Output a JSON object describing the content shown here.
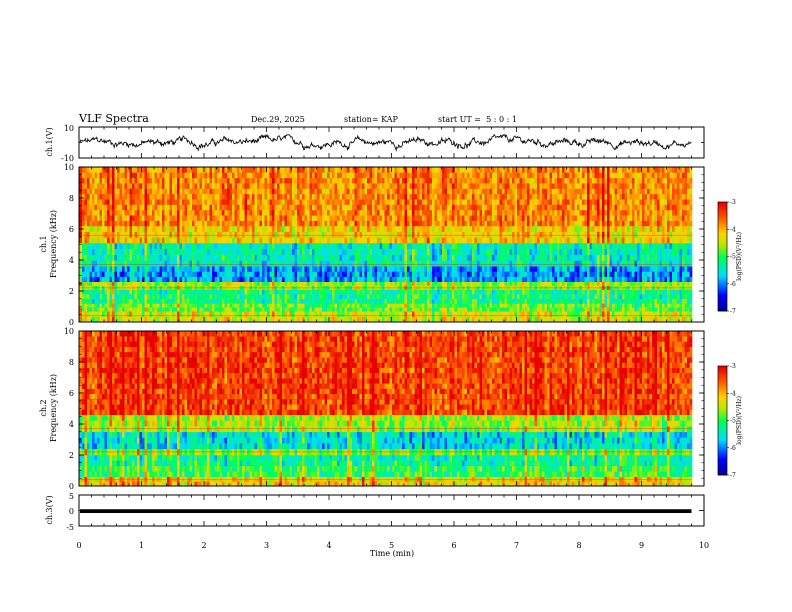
{
  "header": {
    "title": "VLF Spectra",
    "date": "Dec.29, 2025",
    "station": "station= KAP",
    "start": "start UT =  5 : 0 : 1"
  },
  "chart_data": [
    {
      "type": "line",
      "name": "ch1-waveform",
      "ylabel": "ch.1(V)",
      "ylim": [
        -10,
        10
      ],
      "yticks": [
        "10",
        "-10"
      ],
      "x_range_min": [
        0,
        9.8
      ],
      "amplitude_range_v": [
        -5,
        5
      ],
      "color": "#000000"
    },
    {
      "type": "heatmap",
      "name": "ch1-spectrogram",
      "ylabel": "ch.1\nFrequency (kHz)",
      "ylabel_line1": "ch.1",
      "ylabel_line2": "Frequency (kHz)",
      "ylim": [
        0,
        10
      ],
      "yticks": [
        "0",
        "2",
        "4",
        "6",
        "8",
        "10"
      ],
      "x_range_min": [
        0,
        9.8
      ],
      "bands_khz": [
        {
          "from": 0,
          "to": 0.7,
          "log_psd": -4.4
        },
        {
          "from": 0.7,
          "to": 1.2,
          "log_psd": -4.8
        },
        {
          "from": 1.2,
          "to": 2.1,
          "log_psd": -5.2
        },
        {
          "from": 2.1,
          "to": 2.6,
          "log_psd": -4.6
        },
        {
          "from": 2.6,
          "to": 3.6,
          "log_psd": -5.9
        },
        {
          "from": 3.6,
          "to": 5.1,
          "log_psd": -5.4
        },
        {
          "from": 5.1,
          "to": 6.2,
          "log_psd": -4.2
        },
        {
          "from": 6.2,
          "to": 10,
          "log_psd": -3.8
        }
      ],
      "colorbar": {
        "label": "log(PSD)(V²/Hz)",
        "range": [
          -7,
          -3
        ],
        "ticks": [
          "-3",
          "-4",
          "-5",
          "-6",
          "-7"
        ]
      }
    },
    {
      "type": "heatmap",
      "name": "ch2-spectrogram",
      "ylabel": "ch.2\nFrequency (kHz)",
      "ylabel_line1": "ch.2",
      "ylabel_line2": "Frequency (kHz)",
      "ylim": [
        0,
        10
      ],
      "yticks": [
        "0",
        "2",
        "4",
        "6",
        "8",
        "10"
      ],
      "x_range_min": [
        0,
        9.8
      ],
      "bands_khz": [
        {
          "from": 0,
          "to": 0.6,
          "log_psd": -4.2
        },
        {
          "from": 0.6,
          "to": 1.3,
          "log_psd": -5.0
        },
        {
          "from": 1.3,
          "to": 2.0,
          "log_psd": -5.3
        },
        {
          "from": 2.0,
          "to": 2.4,
          "log_psd": -4.7
        },
        {
          "from": 2.4,
          "to": 3.5,
          "log_psd": -5.6
        },
        {
          "from": 3.5,
          "to": 4.6,
          "log_psd": -4.6
        },
        {
          "from": 4.6,
          "to": 10,
          "log_psd": -3.4
        }
      ],
      "colorbar": {
        "label": "log(PSD)(V²/Hz)",
        "range": [
          -7,
          -3
        ],
        "ticks": [
          "-3",
          "-4",
          "-5",
          "-6",
          "-7"
        ]
      }
    },
    {
      "type": "line",
      "name": "ch3-waveform",
      "ylabel": "ch.3(V)",
      "ylim": [
        -5,
        5
      ],
      "yticks": [
        "5",
        "0",
        "-5"
      ],
      "x_range_min": [
        0,
        9.8
      ],
      "band_range_v": [
        -0.8,
        0.4
      ],
      "color": "#000000"
    }
  ],
  "x_axis": {
    "label": "Time (min)",
    "range": [
      0,
      10
    ],
    "ticks": [
      "0",
      "1",
      "2",
      "3",
      "4",
      "5",
      "6",
      "7",
      "8",
      "9",
      "10"
    ]
  }
}
